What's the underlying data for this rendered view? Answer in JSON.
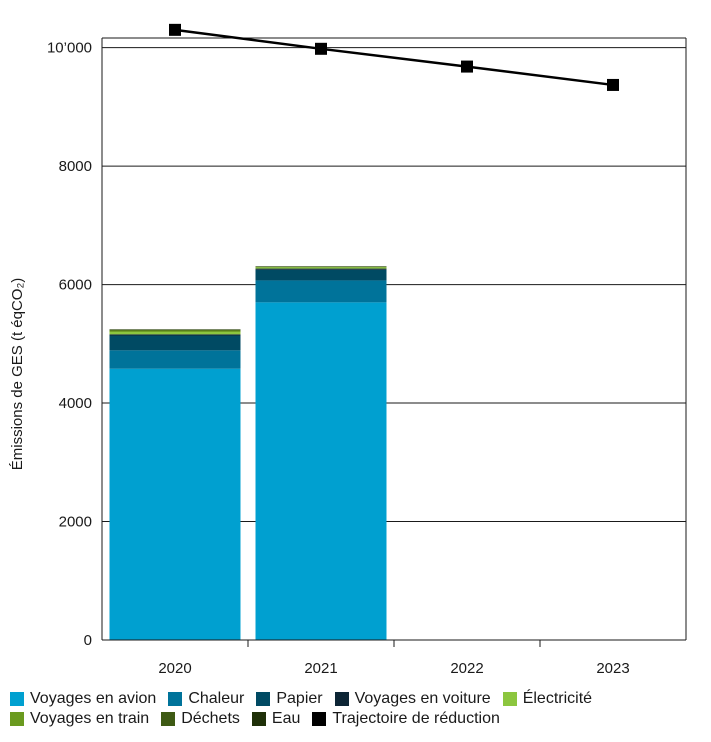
{
  "chart_data": {
    "type": "bar",
    "stacked": true,
    "categories": [
      "2020",
      "2021",
      "2022",
      "2023"
    ],
    "ylabel": "Émissions de GES (t éqCO₂)",
    "ylim": [
      0,
      10500
    ],
    "yticks": [
      0,
      2000,
      4000,
      6000,
      8000,
      10000
    ],
    "ytick_labels": [
      "0",
      "2000",
      "4000",
      "6000",
      "8000",
      "10’000"
    ],
    "grid": true,
    "series": [
      {
        "name": "Voyages en avion",
        "color": "#00a0d0",
        "values": [
          4580,
          5700,
          null,
          null
        ]
      },
      {
        "name": "Chaleur",
        "color": "#00739a",
        "values": [
          310,
          370,
          null,
          null
        ]
      },
      {
        "name": "Papier",
        "color": "#004a63",
        "values": [
          250,
          180,
          null,
          null
        ]
      },
      {
        "name": "Voyages en voiture",
        "color": "#0d2535",
        "values": [
          20,
          20,
          null,
          null
        ]
      },
      {
        "name": "Électricité",
        "color": "#8cc63f",
        "values": [
          40,
          20,
          null,
          null
        ]
      },
      {
        "name": "Voyages en train",
        "color": "#6a9a1f",
        "values": [
          25,
          10,
          null,
          null
        ]
      },
      {
        "name": "Déchets",
        "color": "#3e5a14",
        "values": [
          15,
          5,
          null,
          null
        ]
      },
      {
        "name": "Eau",
        "color": "#1f3008",
        "values": [
          5,
          5,
          null,
          null
        ]
      }
    ],
    "line_series": {
      "name": "Trajectoire de réduction",
      "color": "#000000",
      "values": [
        10300,
        9980,
        9680,
        9370
      ]
    },
    "legend_position": "bottom",
    "legend_rows": [
      [
        "Voyages en avion",
        "Chaleur",
        "Papier",
        "Voyages en voiture",
        "Électricité"
      ],
      [
        "Voyages en train",
        "Déchets",
        "Eau",
        "Trajectoire de réduction"
      ]
    ]
  }
}
